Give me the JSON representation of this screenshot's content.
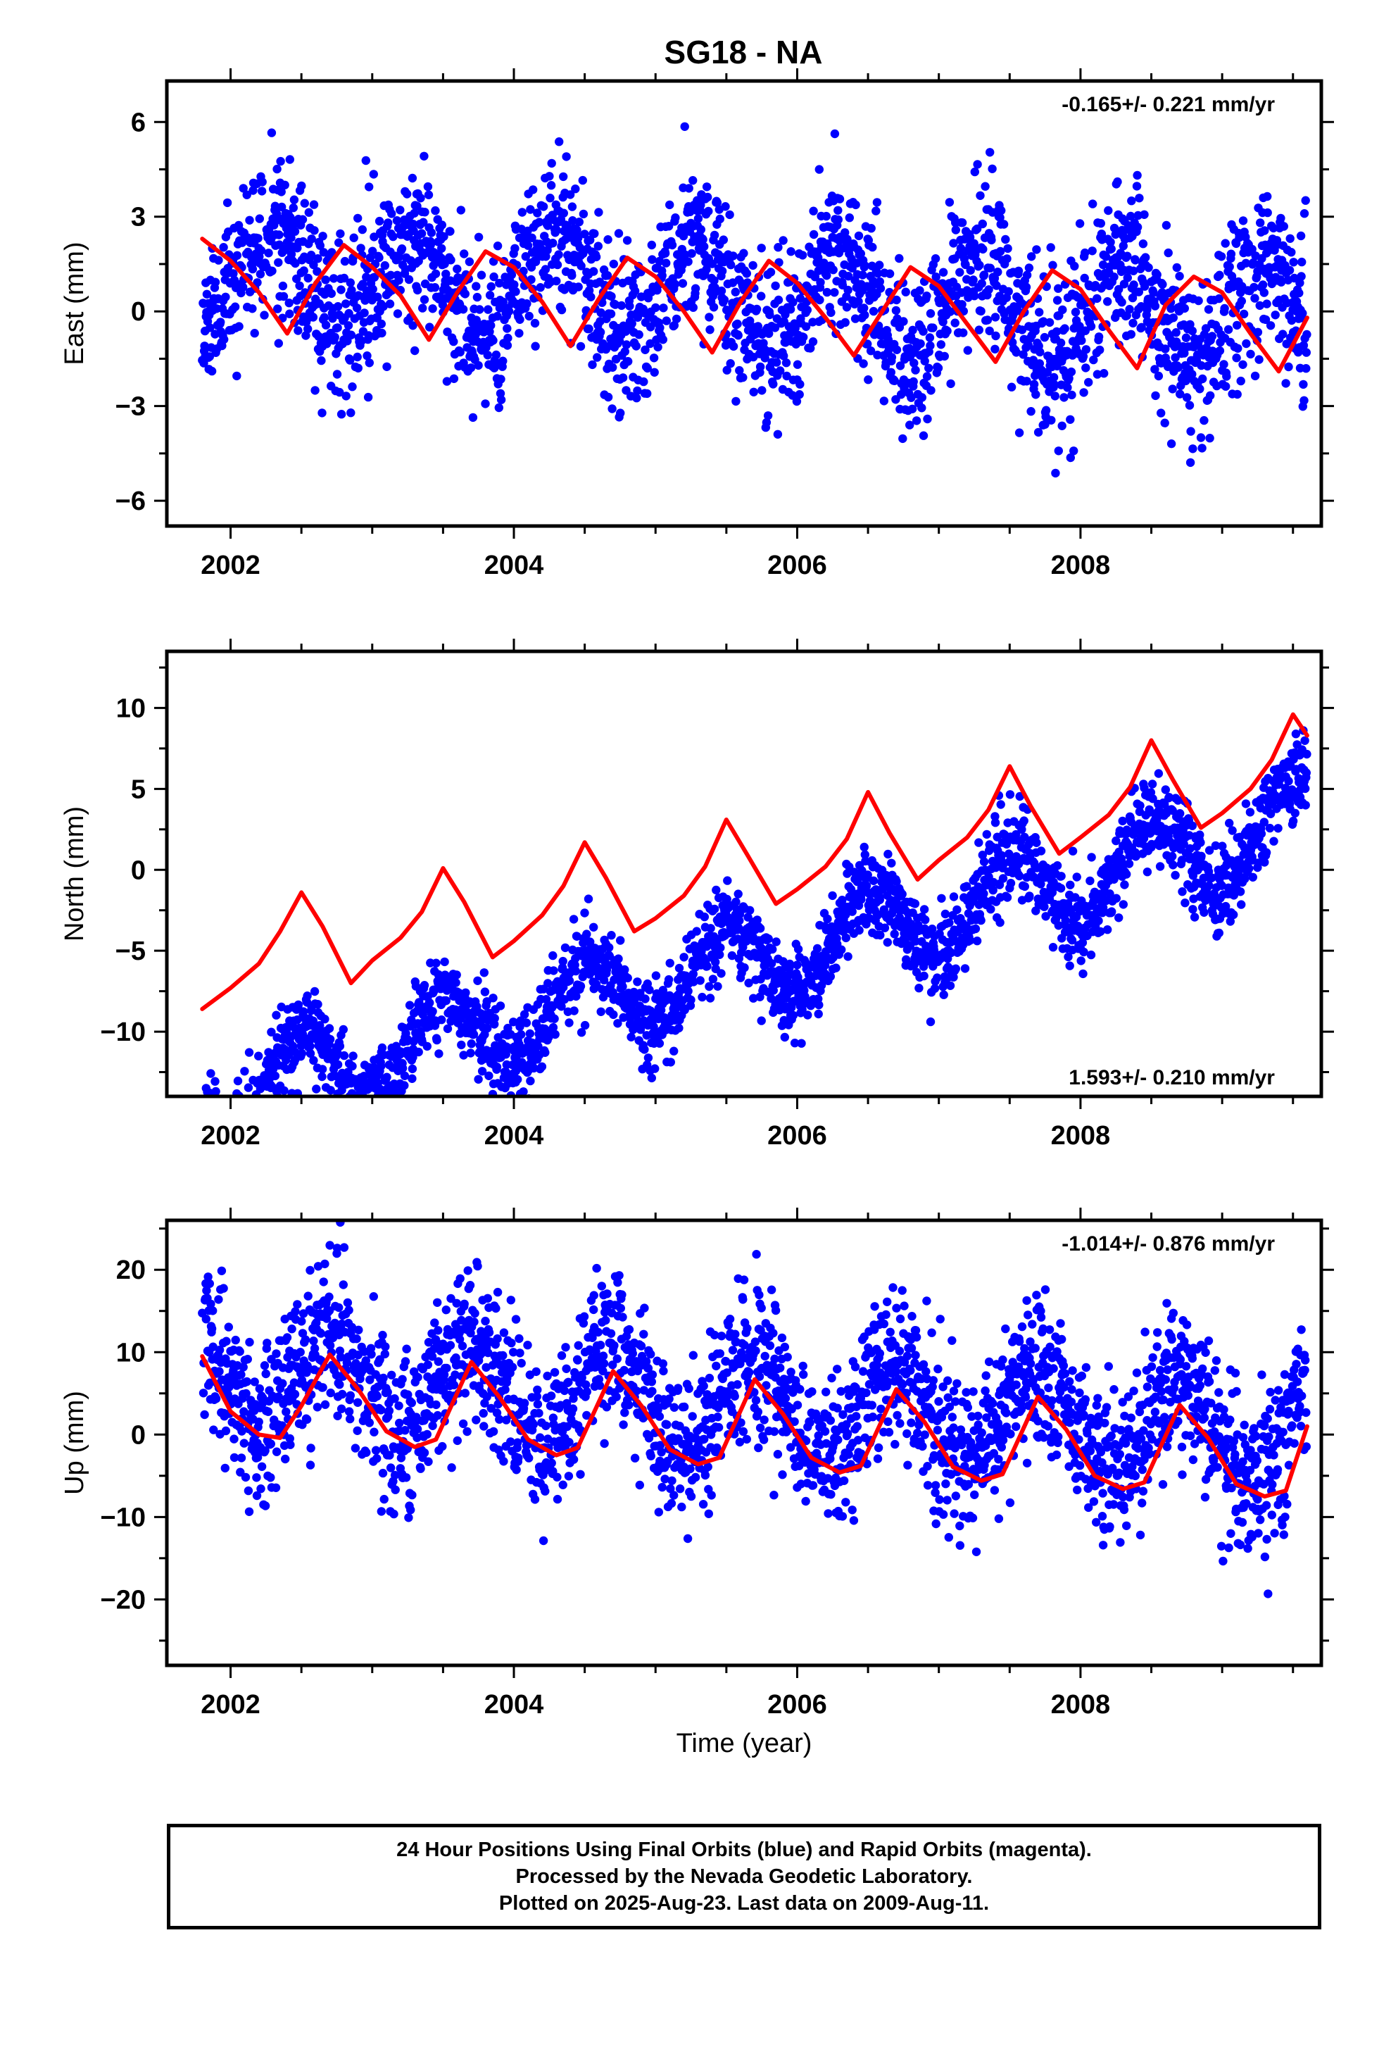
{
  "title": "SG18 - NA",
  "colors": {
    "points": "#0000ff",
    "fit": "#ff0000",
    "axes": "#000000"
  },
  "chart_data": [
    {
      "type": "scatter",
      "ylabel": "East (mm)",
      "xlabel": "",
      "xlim": [
        2001.55,
        2009.7
      ],
      "ylim": [
        -6.8,
        7.3
      ],
      "xticks": [
        2002,
        2004,
        2006,
        2008
      ],
      "xtick_labels": [
        "2002",
        "2004",
        "2006",
        "2008"
      ],
      "yticks": [
        -6,
        -3,
        0,
        3,
        6
      ],
      "ytick_labels": [
        "−6",
        "−3",
        "0",
        "3",
        "6"
      ],
      "rate_label": "-0.165+/- 0.221 mm/yr",
      "rate_position": "top-right",
      "grid": false,
      "series": [
        {
          "kind": "points",
          "trend": {
            "start": 2001.8,
            "end": 2009.6,
            "rate": -0.165,
            "offset": 0.5,
            "amplitude": 1.5,
            "phase": 2001.05,
            "noise": 1.25,
            "seed": 11
          }
        },
        {
          "kind": "fit",
          "x": [
            2001.8,
            2002.0,
            2002.2,
            2002.4,
            2002.6,
            2002.8,
            2003.0,
            2003.2,
            2003.4,
            2003.6,
            2003.8,
            2004.0,
            2004.2,
            2004.4,
            2004.6,
            2004.8,
            2005.0,
            2005.2,
            2005.4,
            2005.6,
            2005.8,
            2006.0,
            2006.2,
            2006.4,
            2006.6,
            2006.8,
            2007.0,
            2007.2,
            2007.4,
            2007.6,
            2007.8,
            2008.0,
            2008.2,
            2008.4,
            2008.6,
            2008.8,
            2009.0,
            2009.2,
            2009.4,
            2009.6
          ],
          "y": [
            2.3,
            1.6,
            0.6,
            -0.7,
            0.9,
            2.1,
            1.4,
            0.5,
            -0.9,
            0.6,
            1.9,
            1.4,
            0.3,
            -1.1,
            0.4,
            1.7,
            1.1,
            0.0,
            -1.3,
            0.3,
            1.6,
            0.9,
            -0.2,
            -1.4,
            0.0,
            1.4,
            0.8,
            -0.4,
            -1.6,
            0.0,
            1.3,
            0.7,
            -0.6,
            -1.8,
            0.2,
            1.1,
            0.6,
            -0.7,
            -1.9,
            -0.2
          ]
        }
      ]
    },
    {
      "type": "scatter",
      "ylabel": "North (mm)",
      "xlabel": "",
      "xlim": [
        2001.55,
        2009.7
      ],
      "ylim": [
        -14,
        13.5
      ],
      "xticks": [
        2002,
        2004,
        2006,
        2008
      ],
      "xtick_labels": [
        "2002",
        "2004",
        "2006",
        "2008"
      ],
      "yticks": [
        -10,
        -5,
        0,
        5,
        10
      ],
      "ytick_labels": [
        "−10",
        "−5",
        "0",
        "5",
        "10"
      ],
      "rate_label": "1.593+/- 0.210 mm/yr",
      "rate_position": "bottom-right",
      "grid": false,
      "series": [
        {
          "kind": "points",
          "trend": {
            "start": 2001.8,
            "end": 2009.6,
            "rate": 2.2,
            "offset": -5.6,
            "amplitude": 2.7,
            "phase": 2002.25,
            "noise": 1.3,
            "seed": 23
          }
        },
        {
          "kind": "fit",
          "x": [
            2001.8,
            2002.0,
            2002.2,
            2002.35,
            2002.5,
            2002.65,
            2002.85,
            2003.0,
            2003.2,
            2003.35,
            2003.5,
            2003.65,
            2003.85,
            2004.0,
            2004.2,
            2004.35,
            2004.5,
            2004.65,
            2004.85,
            2005.0,
            2005.2,
            2005.35,
            2005.5,
            2005.65,
            2005.85,
            2006.0,
            2006.2,
            2006.35,
            2006.5,
            2006.65,
            2006.85,
            2007.0,
            2007.2,
            2007.35,
            2007.5,
            2007.65,
            2007.85,
            2008.0,
            2008.2,
            2008.35,
            2008.5,
            2008.65,
            2008.85,
            2009.0,
            2009.2,
            2009.35,
            2009.5,
            2009.6
          ],
          "y": [
            -8.6,
            -7.3,
            -5.8,
            -3.8,
            -1.4,
            -3.5,
            -7.0,
            -5.6,
            -4.2,
            -2.6,
            0.1,
            -2.0,
            -5.4,
            -4.4,
            -2.8,
            -1.0,
            1.7,
            -0.5,
            -3.8,
            -3.0,
            -1.6,
            0.2,
            3.1,
            0.9,
            -2.1,
            -1.2,
            0.2,
            1.9,
            4.8,
            2.3,
            -0.6,
            0.6,
            2.0,
            3.7,
            6.4,
            3.9,
            1.0,
            2.0,
            3.4,
            5.1,
            8.0,
            5.6,
            2.6,
            3.5,
            5.0,
            6.8,
            9.6,
            8.3
          ]
        }
      ]
    },
    {
      "type": "scatter",
      "ylabel": "Up (mm)",
      "xlabel": "Time (year)",
      "xlim": [
        2001.55,
        2009.7
      ],
      "ylim": [
        -28,
        26
      ],
      "xticks": [
        2002,
        2004,
        2006,
        2008
      ],
      "xtick_labels": [
        "2002",
        "2004",
        "2006",
        "2008"
      ],
      "yticks": [
        -20,
        -10,
        0,
        10,
        20
      ],
      "ytick_labels": [
        "−20",
        "−10",
        "0",
        "10",
        "20"
      ],
      "rate_label": "-1.014+/- 0.876 mm/yr",
      "rate_position": "top-right",
      "grid": false,
      "series": [
        {
          "kind": "points",
          "trend": {
            "start": 2001.8,
            "end": 2009.6,
            "rate": -1.0,
            "offset": 3.5,
            "amplitude": 6.0,
            "phase": 2002.45,
            "noise": 4.6,
            "seed": 37
          }
        },
        {
          "kind": "fit",
          "x": [
            2001.8,
            2002.0,
            2002.2,
            2002.35,
            2002.5,
            2002.7,
            2002.9,
            2003.1,
            2003.3,
            2003.45,
            2003.7,
            2003.9,
            2004.1,
            2004.3,
            2004.45,
            2004.7,
            2004.9,
            2005.1,
            2005.3,
            2005.45,
            2005.7,
            2005.9,
            2006.1,
            2006.3,
            2006.45,
            2006.7,
            2006.9,
            2007.1,
            2007.3,
            2007.45,
            2007.7,
            2007.9,
            2008.1,
            2008.3,
            2008.45,
            2008.7,
            2008.9,
            2009.1,
            2009.3,
            2009.45,
            2009.6
          ],
          "y": [
            9.5,
            2.8,
            0.0,
            -0.4,
            3.5,
            9.7,
            5.5,
            0.4,
            -1.5,
            -0.6,
            8.8,
            4.5,
            -0.6,
            -2.5,
            -1.6,
            7.7,
            3.5,
            -1.8,
            -3.6,
            -2.8,
            6.7,
            2.5,
            -2.8,
            -4.6,
            -3.8,
            5.5,
            1.5,
            -3.9,
            -5.6,
            -4.8,
            4.6,
            0.6,
            -5.0,
            -6.6,
            -5.8,
            3.6,
            -0.4,
            -6.0,
            -7.5,
            -6.8,
            1.0
          ]
        }
      ]
    }
  ],
  "footer": {
    "line1": "24 Hour Positions Using Final Orbits (blue) and Rapid Orbits (magenta).",
    "line2": "Processed by the Nevada Geodetic Laboratory.",
    "line3": "Plotted on 2025-Aug-23. Last data on 2009-Aug-11."
  }
}
